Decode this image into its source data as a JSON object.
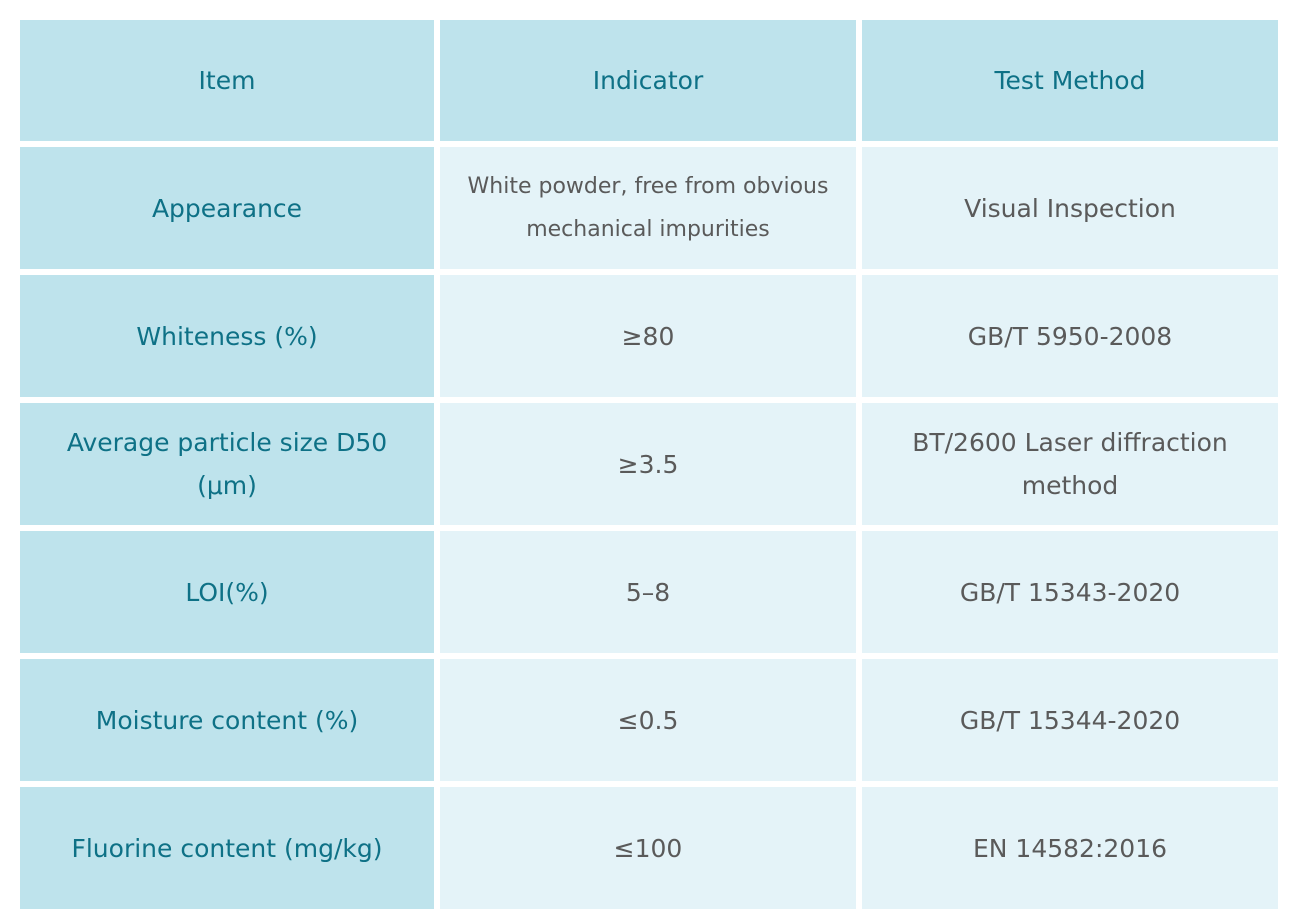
{
  "headers": [
    "Item",
    "Indicator",
    "Test Method"
  ],
  "rows": [
    {
      "item": "Appearance",
      "indicator": "White powder, free from obvious mechanical impurities",
      "method": "Visual Inspection"
    },
    {
      "item": "Whiteness (%)",
      "indicator": "≥80",
      "method": "GB/T 5950-2008"
    },
    {
      "item": "Average particle size D50 (μm)",
      "indicator": "≥3.5",
      "method": "BT/2600 Laser diffraction method"
    },
    {
      "item": "LOI(%)",
      "indicator": "5–8",
      "method": "GB/T 15343-2020"
    },
    {
      "item": "Moisture content (%)",
      "indicator": "≤0.5",
      "method": "GB/T 15344-2020"
    },
    {
      "item": "Fluorine content (mg/kg)",
      "indicator": "≤100",
      "method": "EN 14582:2016"
    }
  ]
}
